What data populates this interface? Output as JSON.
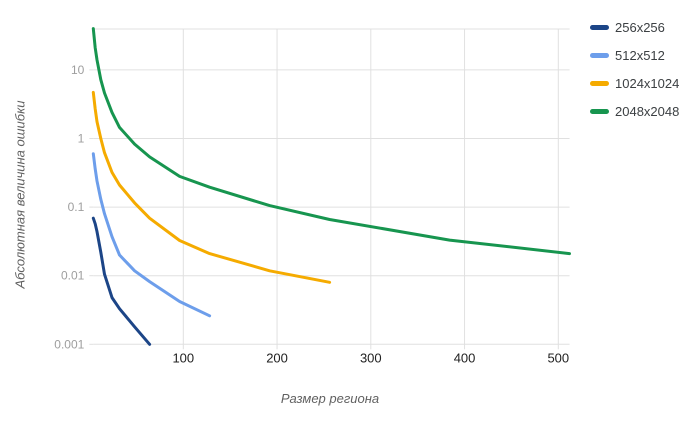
{
  "chart_data": {
    "type": "line",
    "title": "",
    "xlabel": "Размер региона",
    "ylabel": "Абсолютная величина ошибки",
    "x_scale": "linear",
    "y_scale": "log",
    "xlim": [
      4,
      512
    ],
    "ylim": [
      0.001,
      39.5
    ],
    "x_ticks": [
      100,
      200,
      300,
      400,
      500
    ],
    "y_ticks": [
      10,
      1,
      0.1,
      0.01,
      0.001
    ],
    "y_tick_labels": [
      "10",
      "1",
      "0.1",
      "0.01",
      "0.001"
    ],
    "grid": true,
    "legend_position": "right",
    "grid_color": "#e0e0e0",
    "series": [
      {
        "name": "256x256",
        "color": "#1c4587",
        "x": [
          4,
          6,
          8,
          12,
          16,
          24,
          32,
          48,
          64
        ],
        "y": [
          0.069,
          0.057,
          0.044,
          0.022,
          0.0105,
          0.0048,
          0.0033,
          0.0018,
          0.001
        ]
      },
      {
        "name": "512x512",
        "color": "#6d9eeb",
        "x": [
          4,
          6,
          8,
          12,
          16,
          24,
          32,
          48,
          64,
          96,
          128
        ],
        "y": [
          0.6,
          0.36,
          0.24,
          0.13,
          0.08,
          0.037,
          0.02,
          0.0118,
          0.0082,
          0.0042,
          0.0026
        ]
      },
      {
        "name": "1024x1024",
        "color": "#f5ab00",
        "x": [
          4,
          6,
          8,
          12,
          16,
          24,
          32,
          48,
          64,
          96,
          128,
          192,
          256
        ],
        "y": [
          4.7,
          2.7,
          1.76,
          1.0,
          0.62,
          0.32,
          0.21,
          0.115,
          0.069,
          0.0326,
          0.021,
          0.0118,
          0.008
        ]
      },
      {
        "name": "2048x2048",
        "color": "#17954f",
        "x": [
          4,
          6,
          8,
          12,
          16,
          24,
          32,
          48,
          64,
          96,
          128,
          192,
          256,
          384,
          512
        ],
        "y": [
          40,
          21,
          14,
          7.2,
          4.6,
          2.4,
          1.45,
          0.83,
          0.54,
          0.28,
          0.195,
          0.105,
          0.066,
          0.033,
          0.021
        ]
      }
    ]
  }
}
